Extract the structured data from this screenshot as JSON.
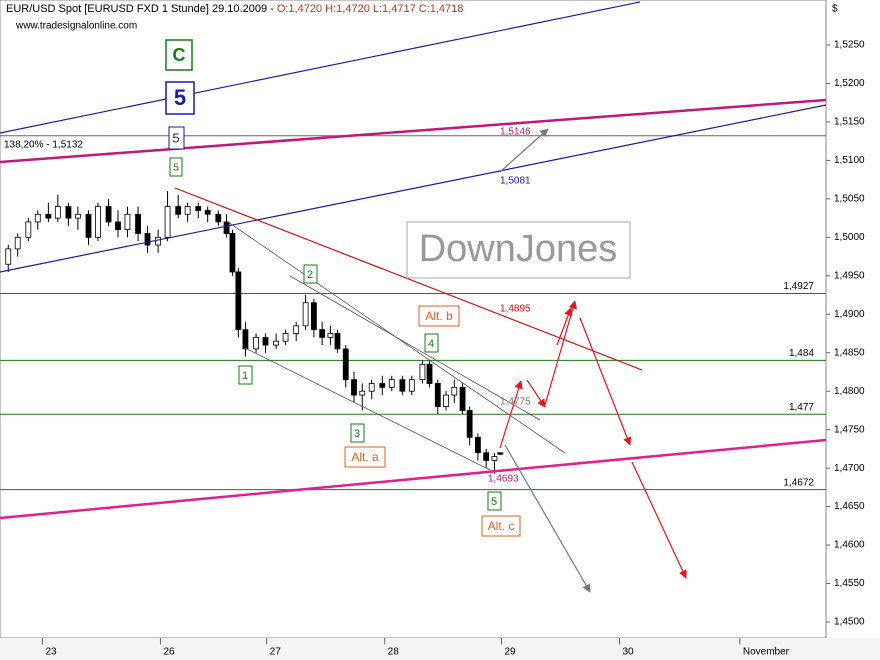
{
  "chart_data": {
    "type": "candlestick",
    "title": "EUR/USD Spot [EURUSD FXD  1 Stunde] 29.10.2009 -",
    "ohlc_text": "O:1,4720 H:1,4720 L:1,4717 C:1,4718",
    "source": "www.tradesignalonline.com",
    "currency": "$",
    "watermark": "DownJones",
    "x": [
      0.07,
      0.15,
      0.24,
      0.32,
      0.41,
      0.49,
      0.58,
      0.66,
      0.75,
      0.83,
      0.92,
      1.0,
      1.08,
      1.17,
      1.25,
      1.34,
      1.42,
      1.51,
      1.59,
      1.68,
      1.76,
      1.85,
      1.92,
      1.97,
      2.02,
      2.08,
      2.17,
      2.25,
      2.34,
      2.42,
      2.51,
      2.59,
      2.66,
      2.73,
      2.8,
      2.86,
      2.93,
      3.0,
      3.07,
      3.15,
      3.24,
      3.32,
      3.41,
      3.49,
      3.58,
      3.64,
      3.71,
      3.78,
      3.85,
      3.92,
      3.98,
      4.05,
      4.12,
      4.19,
      4.24
    ],
    "open": [
      1.4965,
      1.4985,
      1.5,
      1.502,
      1.503,
      1.5025,
      1.504,
      1.5025,
      1.503,
      1.5,
      1.504,
      1.502,
      1.501,
      1.503,
      1.5005,
      1.499,
      1.5,
      1.504,
      1.503,
      1.504,
      1.5035,
      1.503,
      1.502,
      1.5005,
      1.4955,
      1.488,
      1.4855,
      1.487,
      1.486,
      1.4865,
      1.4875,
      1.4885,
      1.4915,
      1.488,
      1.487,
      1.4875,
      1.4855,
      1.4815,
      1.4795,
      1.48,
      1.481,
      1.4805,
      1.4815,
      1.48,
      1.4815,
      1.4835,
      1.481,
      1.478,
      1.4795,
      1.4805,
      1.4775,
      1.474,
      1.472,
      1.471,
      1.472
    ],
    "high": [
      1.499,
      1.5005,
      1.5025,
      1.5035,
      1.5045,
      1.5055,
      1.5045,
      1.504,
      1.5035,
      1.5045,
      1.505,
      1.5035,
      1.504,
      1.504,
      1.5015,
      1.501,
      1.506,
      1.5055,
      1.5045,
      1.5045,
      1.504,
      1.5035,
      1.503,
      1.501,
      1.496,
      1.489,
      1.4875,
      1.4875,
      1.4875,
      1.488,
      1.489,
      1.4925,
      1.492,
      1.489,
      1.4885,
      1.488,
      1.486,
      1.4825,
      1.481,
      1.4815,
      1.482,
      1.482,
      1.482,
      1.482,
      1.484,
      1.484,
      1.4815,
      1.48,
      1.4815,
      1.481,
      1.478,
      1.4745,
      1.4725,
      1.472,
      1.472
    ],
    "low": [
      1.4955,
      1.4975,
      1.4995,
      1.501,
      1.502,
      1.502,
      1.5015,
      1.501,
      1.499,
      1.4995,
      1.5015,
      1.5,
      1.5,
      1.4995,
      1.498,
      1.498,
      1.4995,
      1.5025,
      1.502,
      1.5025,
      1.502,
      1.5015,
      1.5,
      1.495,
      1.487,
      1.4845,
      1.485,
      1.485,
      1.4855,
      1.486,
      1.4865,
      1.488,
      1.487,
      1.486,
      1.486,
      1.485,
      1.4805,
      1.4785,
      1.4775,
      1.479,
      1.4795,
      1.48,
      1.4795,
      1.4795,
      1.481,
      1.4805,
      1.477,
      1.4775,
      1.4785,
      1.477,
      1.473,
      1.471,
      1.47,
      1.4693,
      1.4717
    ],
    "close": [
      1.4985,
      1.5,
      1.502,
      1.503,
      1.5025,
      1.504,
      1.5025,
      1.503,
      1.5,
      1.504,
      1.502,
      1.501,
      1.503,
      1.5005,
      1.499,
      1.5,
      1.504,
      1.503,
      1.504,
      1.5035,
      1.503,
      1.502,
      1.5005,
      1.4955,
      1.488,
      1.4855,
      1.487,
      1.486,
      1.4865,
      1.4875,
      1.4885,
      1.4915,
      1.488,
      1.487,
      1.4875,
      1.4855,
      1.4815,
      1.4795,
      1.48,
      1.481,
      1.4805,
      1.4815,
      1.48,
      1.4815,
      1.4835,
      1.481,
      1.478,
      1.4795,
      1.4805,
      1.4775,
      1.474,
      1.472,
      1.471,
      1.4715,
      1.4718
    ],
    "xlim": [
      0,
      7
    ],
    "xticks": [
      {
        "value": 0.36,
        "label": "23"
      },
      {
        "value": 1.36,
        "label": "26"
      },
      {
        "value": 2.26,
        "label": "27"
      },
      {
        "value": 3.26,
        "label": "28"
      },
      {
        "value": 4.25,
        "label": "29"
      },
      {
        "value": 5.25,
        "label": "30"
      },
      {
        "value": 6.27,
        "label": "November"
      }
    ],
    "ylim": [
      1.44792,
      1.53085
    ],
    "yticks": [
      {
        "value": 1.525,
        "label": "1,5250"
      },
      {
        "value": 1.52,
        "label": "1,5200"
      },
      {
        "value": 1.515,
        "label": "1,5150"
      },
      {
        "value": 1.51,
        "label": "1,5100"
      },
      {
        "value": 1.505,
        "label": "1,5050"
      },
      {
        "value": 1.5,
        "label": "1,5000"
      },
      {
        "value": 1.495,
        "label": "1,4950"
      },
      {
        "value": 1.49,
        "label": "1,4900"
      },
      {
        "value": 1.485,
        "label": "1,4850"
      },
      {
        "value": 1.48,
        "label": "1,4800"
      },
      {
        "value": 1.475,
        "label": "1,4750"
      },
      {
        "value": 1.47,
        "label": "1,4700"
      },
      {
        "value": 1.465,
        "label": "1,4650"
      },
      {
        "value": 1.46,
        "label": "1,4600"
      },
      {
        "value": 1.455,
        "label": "1,4550"
      },
      {
        "value": 1.45,
        "label": "1,4500"
      }
    ],
    "levels": [
      {
        "value": 1.4927,
        "label": "1,4927"
      },
      {
        "value": 1.484,
        "label": "1,484"
      },
      {
        "value": 1.477,
        "label": "1,477"
      },
      {
        "value": 1.4672,
        "label": "1,4672"
      }
    ],
    "fib_level": {
      "value": 1.5132,
      "label": "138,20% - 1,5132"
    },
    "line_labels": [
      "1,5146",
      "1,5081",
      "1,4895",
      "1,4775",
      "1,4693"
    ],
    "wave_labels": [
      "C",
      "5",
      "5",
      "5",
      "1",
      "2",
      "3",
      "4",
      "5",
      "Alt. a",
      "Alt. b",
      "Alt. c"
    ]
  }
}
